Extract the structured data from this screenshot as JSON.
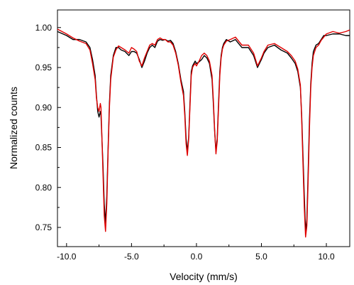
{
  "chart_data": {
    "type": "line",
    "title": "",
    "xlabel": "Velocity (mm/s)",
    "ylabel": "Normalized counts",
    "xlim": [
      -10.7,
      11.8
    ],
    "ylim": [
      0.726,
      1.022
    ],
    "x_ticks": [
      -10,
      -5,
      0,
      5,
      10
    ],
    "x_tick_labels": [
      "-10.0",
      "-5.0",
      "0.0",
      "5.0",
      "10.0"
    ],
    "y_ticks": [
      0.75,
      0.8,
      0.85,
      0.9,
      0.95,
      1.0
    ],
    "y_tick_labels": [
      "0.75",
      "0.80",
      "0.85",
      "0.90",
      "0.95",
      "1.00"
    ],
    "grid": false,
    "series": [
      {
        "color": "#000000",
        "x": [
          -10.7,
          -10.0,
          -9.5,
          -9.0,
          -8.5,
          -8.2,
          -8.0,
          -7.8,
          -7.7,
          -7.6,
          -7.5,
          -7.4,
          -7.35,
          -7.3,
          -7.2,
          -7.1,
          -7.0,
          -6.9,
          -6.8,
          -6.7,
          -6.6,
          -6.4,
          -6.2,
          -6.0,
          -5.8,
          -5.5,
          -5.2,
          -5.0,
          -4.8,
          -4.6,
          -4.4,
          -4.2,
          -4.0,
          -3.8,
          -3.6,
          -3.4,
          -3.2,
          -3.0,
          -2.8,
          -2.6,
          -2.4,
          -2.2,
          -2.0,
          -1.8,
          -1.6,
          -1.4,
          -1.2,
          -1.0,
          -0.9,
          -0.8,
          -0.7,
          -0.6,
          -0.5,
          -0.4,
          -0.3,
          -0.2,
          -0.1,
          0.0,
          0.2,
          0.4,
          0.6,
          0.8,
          1.0,
          1.2,
          1.3,
          1.4,
          1.5,
          1.6,
          1.7,
          1.8,
          1.9,
          2.0,
          2.1,
          2.3,
          2.6,
          3.0,
          3.5,
          4.0,
          4.4,
          4.7,
          5.0,
          5.2,
          5.5,
          6.0,
          6.5,
          7.0,
          7.3,
          7.6,
          7.8,
          8.0,
          8.1,
          8.2,
          8.3,
          8.4,
          8.5,
          8.6,
          8.7,
          8.8,
          8.9,
          9.0,
          9.2,
          9.4,
          9.6,
          9.8,
          10.0,
          10.5,
          11.0,
          11.5,
          11.8
        ],
        "y": [
          0.995,
          0.99,
          0.985,
          0.985,
          0.982,
          0.975,
          0.96,
          0.94,
          0.915,
          0.895,
          0.888,
          0.895,
          0.89,
          0.87,
          0.83,
          0.78,
          0.755,
          0.79,
          0.85,
          0.905,
          0.94,
          0.965,
          0.975,
          0.975,
          0.972,
          0.97,
          0.965,
          0.97,
          0.97,
          0.968,
          0.96,
          0.95,
          0.958,
          0.968,
          0.975,
          0.978,
          0.975,
          0.983,
          0.985,
          0.984,
          0.985,
          0.983,
          0.984,
          0.98,
          0.97,
          0.955,
          0.935,
          0.92,
          0.895,
          0.862,
          0.845,
          0.862,
          0.905,
          0.945,
          0.952,
          0.955,
          0.958,
          0.955,
          0.957,
          0.96,
          0.965,
          0.962,
          0.955,
          0.935,
          0.905,
          0.87,
          0.845,
          0.862,
          0.905,
          0.945,
          0.965,
          0.975,
          0.98,
          0.985,
          0.982,
          0.985,
          0.975,
          0.975,
          0.965,
          0.95,
          0.96,
          0.968,
          0.975,
          0.978,
          0.972,
          0.968,
          0.962,
          0.955,
          0.945,
          0.925,
          0.89,
          0.84,
          0.79,
          0.745,
          0.76,
          0.82,
          0.885,
          0.93,
          0.955,
          0.97,
          0.978,
          0.98,
          0.985,
          0.99,
          0.99,
          0.992,
          0.992,
          0.99,
          0.99
        ]
      },
      {
        "color": "#e00000",
        "x": [
          -10.7,
          -10.0,
          -9.5,
          -9.0,
          -8.5,
          -8.2,
          -8.0,
          -7.8,
          -7.7,
          -7.6,
          -7.5,
          -7.4,
          -7.35,
          -7.3,
          -7.2,
          -7.1,
          -7.0,
          -6.9,
          -6.8,
          -6.7,
          -6.6,
          -6.4,
          -6.2,
          -6.0,
          -5.8,
          -5.5,
          -5.2,
          -5.0,
          -4.8,
          -4.6,
          -4.4,
          -4.2,
          -4.0,
          -3.8,
          -3.6,
          -3.4,
          -3.2,
          -3.0,
          -2.8,
          -2.6,
          -2.4,
          -2.2,
          -2.0,
          -1.8,
          -1.6,
          -1.4,
          -1.2,
          -1.0,
          -0.9,
          -0.8,
          -0.7,
          -0.6,
          -0.5,
          -0.4,
          -0.3,
          -0.2,
          -0.1,
          0.0,
          0.2,
          0.4,
          0.6,
          0.8,
          1.0,
          1.2,
          1.3,
          1.4,
          1.5,
          1.6,
          1.7,
          1.8,
          1.9,
          2.0,
          2.1,
          2.3,
          2.6,
          3.0,
          3.5,
          4.0,
          4.4,
          4.7,
          5.0,
          5.2,
          5.5,
          6.0,
          6.5,
          7.0,
          7.3,
          7.6,
          7.8,
          8.0,
          8.1,
          8.2,
          8.3,
          8.4,
          8.5,
          8.6,
          8.7,
          8.8,
          8.9,
          9.0,
          9.2,
          9.4,
          9.6,
          9.8,
          10.0,
          10.5,
          11.0,
          11.5,
          11.8
        ],
        "y": [
          0.998,
          0.992,
          0.987,
          0.983,
          0.98,
          0.972,
          0.955,
          0.935,
          0.912,
          0.9,
          0.895,
          0.905,
          0.9,
          0.875,
          0.82,
          0.765,
          0.745,
          0.78,
          0.845,
          0.9,
          0.935,
          0.963,
          0.972,
          0.977,
          0.975,
          0.972,
          0.968,
          0.975,
          0.973,
          0.97,
          0.958,
          0.952,
          0.962,
          0.97,
          0.978,
          0.98,
          0.978,
          0.985,
          0.987,
          0.985,
          0.985,
          0.982,
          0.982,
          0.978,
          0.968,
          0.953,
          0.932,
          0.915,
          0.89,
          0.855,
          0.84,
          0.86,
          0.9,
          0.94,
          0.95,
          0.953,
          0.955,
          0.952,
          0.958,
          0.965,
          0.968,
          0.965,
          0.958,
          0.94,
          0.91,
          0.872,
          0.842,
          0.858,
          0.9,
          0.94,
          0.962,
          0.973,
          0.978,
          0.983,
          0.985,
          0.988,
          0.978,
          0.978,
          0.968,
          0.952,
          0.962,
          0.97,
          0.978,
          0.98,
          0.975,
          0.97,
          0.965,
          0.958,
          0.948,
          0.928,
          0.885,
          0.83,
          0.775,
          0.738,
          0.752,
          0.81,
          0.875,
          0.925,
          0.95,
          0.965,
          0.975,
          0.978,
          0.984,
          0.988,
          0.992,
          0.995,
          0.993,
          0.995,
          0.997
        ]
      }
    ]
  }
}
